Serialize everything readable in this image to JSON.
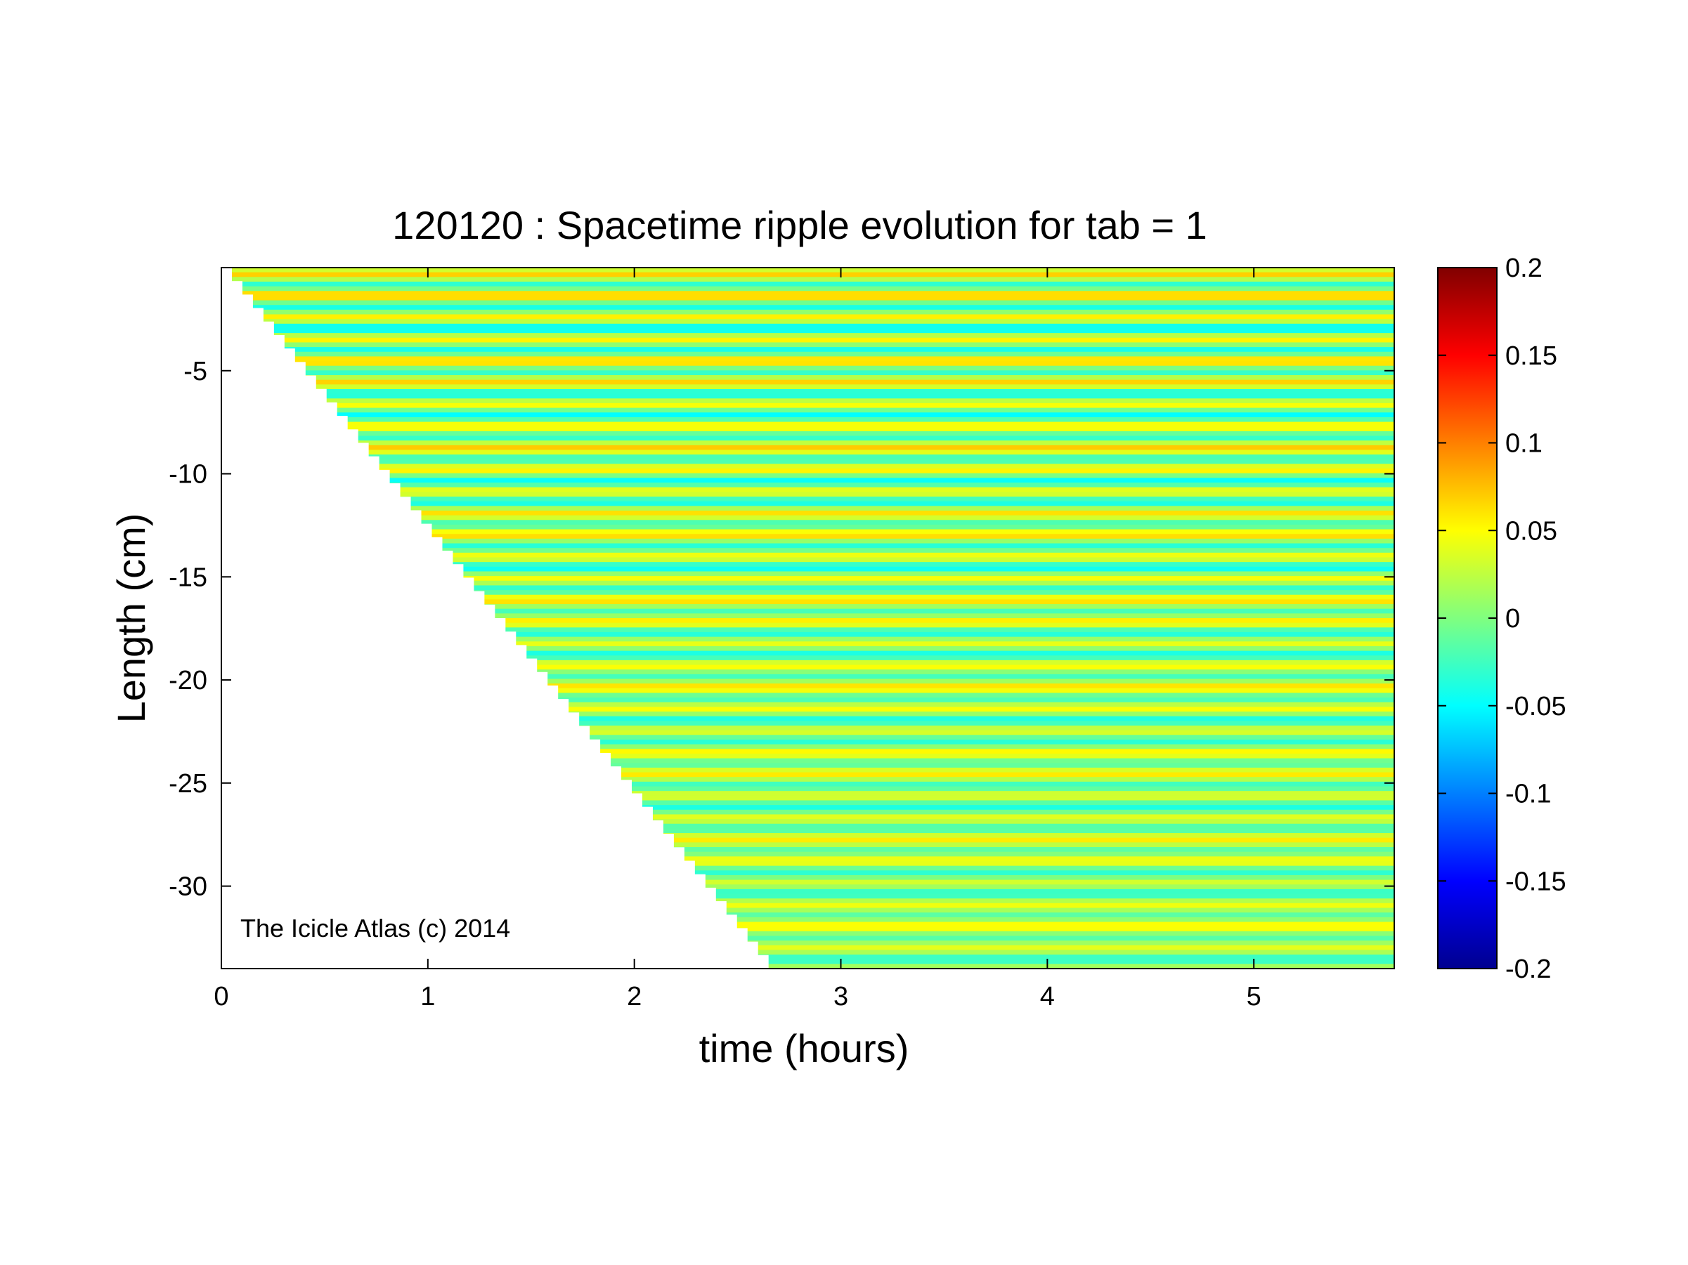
{
  "chart_data": {
    "type": "heatmap",
    "title": "120120 : Spacetime ripple evolution for tab = 1",
    "xlabel": "time (hours)",
    "ylabel": "Length (cm)",
    "xlim": [
      0,
      5.68
    ],
    "ylim": [
      -34,
      0
    ],
    "x_ticks": [
      0,
      1,
      2,
      3,
      4,
      5
    ],
    "x_tick_labels": [
      "0",
      "1",
      "2",
      "3",
      "4",
      "5"
    ],
    "y_ticks": [
      -5,
      -10,
      -15,
      -20,
      -25,
      -30
    ],
    "y_tick_labels": [
      "-5",
      "-10",
      "-15",
      "-20",
      "-25",
      "-30"
    ],
    "colorbar": {
      "colormap": "jet",
      "range": [
        -0.2,
        0.2
      ],
      "ticks": [
        0.2,
        0.15,
        0.1,
        0.05,
        0,
        -0.05,
        -0.1,
        -0.15,
        -0.2
      ],
      "tick_labels": [
        "0.2",
        "0.15",
        "0.1",
        "0.05",
        "0",
        "-0.05",
        "-0.1",
        "-0.15",
        "-0.2"
      ]
    },
    "growth_front": [
      [
        0,
        0
      ],
      [
        2.65,
        -34
      ]
    ],
    "annotation": "The Icicle Atlas (c) 2014",
    "grid": false
  }
}
